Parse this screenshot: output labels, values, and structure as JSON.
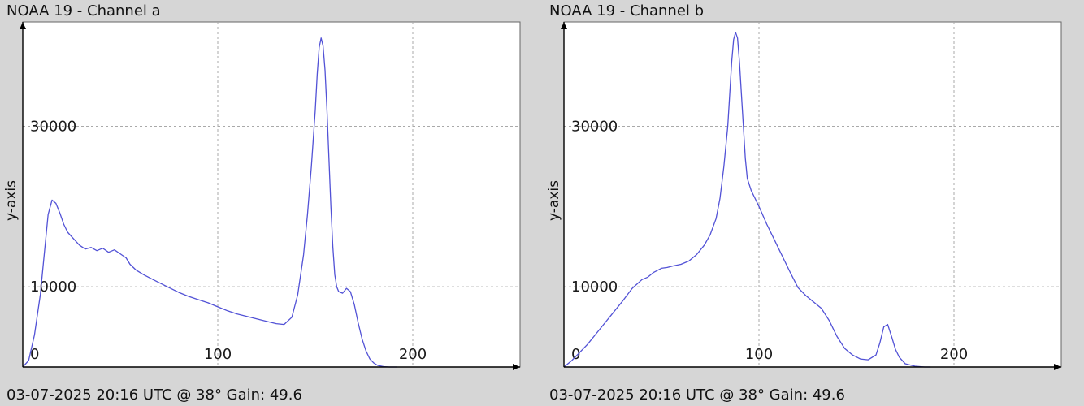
{
  "panels": [
    {
      "title": "NOAA 19 - Channel a",
      "footer": "03-07-2025 20:16 UTC @ 38° Gain: 49.6",
      "ylabel": "y-axis"
    },
    {
      "title": "NOAA 19 - Channel b",
      "footer": "03-07-2025 20:16 UTC @ 38° Gain: 49.6",
      "ylabel": "y-axis"
    }
  ],
  "chart_data": [
    {
      "type": "line",
      "title": "NOAA 19 - Channel a",
      "ylabel": "y-axis",
      "xlim": [
        0,
        255
      ],
      "ylim": [
        0,
        43000
      ],
      "xticks": [
        0,
        100,
        200
      ],
      "yticks": [
        10000,
        30000
      ],
      "grid": true,
      "series_color": "#5252d6",
      "x": [
        0,
        3,
        6,
        9,
        11,
        13,
        15,
        17,
        19,
        21,
        23,
        26,
        29,
        32,
        35,
        38,
        41,
        44,
        47,
        50,
        53,
        55,
        58,
        62,
        66,
        70,
        75,
        80,
        85,
        90,
        95,
        100,
        105,
        110,
        115,
        120,
        125,
        130,
        134,
        138,
        141,
        144,
        146,
        148,
        150,
        151,
        152,
        153,
        154,
        155,
        156,
        157,
        158,
        159,
        160,
        161,
        162,
        164,
        166,
        168,
        170,
        172,
        174,
        176,
        178,
        180,
        182,
        185,
        188,
        190,
        192
      ],
      "values": [
        0,
        800,
        4000,
        9000,
        14000,
        19000,
        20800,
        20400,
        19200,
        17800,
        16800,
        16000,
        15200,
        14700,
        14900,
        14500,
        14800,
        14300,
        14600,
        14100,
        13600,
        12800,
        12100,
        11500,
        11000,
        10500,
        9900,
        9300,
        8800,
        8400,
        8000,
        7500,
        7000,
        6600,
        6300,
        6000,
        5700,
        5400,
        5300,
        6200,
        9000,
        14000,
        19000,
        25000,
        32000,
        36500,
        39800,
        41000,
        40000,
        37000,
        32000,
        26000,
        20000,
        15000,
        11500,
        10000,
        9400,
        9200,
        9800,
        9400,
        7800,
        5500,
        3500,
        2000,
        1000,
        500,
        200,
        50,
        0,
        0,
        0
      ]
    },
    {
      "type": "line",
      "title": "NOAA 19 - Channel b",
      "ylabel": "y-axis",
      "xlim": [
        0,
        255
      ],
      "ylim": [
        0,
        43000
      ],
      "xticks": [
        0,
        100,
        200
      ],
      "yticks": [
        10000,
        30000
      ],
      "grid": true,
      "series_color": "#5252d6",
      "x": [
        0,
        4,
        8,
        12,
        16,
        20,
        25,
        30,
        35,
        40,
        43,
        46,
        50,
        53,
        56,
        60,
        64,
        68,
        72,
        75,
        78,
        80,
        82,
        84,
        85,
        86,
        87,
        88,
        89,
        90,
        91,
        92,
        93,
        94,
        96,
        98,
        100,
        104,
        108,
        112,
        116,
        120,
        124,
        128,
        132,
        136,
        140,
        144,
        148,
        152,
        156,
        160,
        162,
        164,
        166,
        168,
        170,
        172,
        175,
        180,
        185,
        188
      ],
      "values": [
        0,
        800,
        1800,
        2800,
        4000,
        5200,
        6700,
        8200,
        9800,
        10900,
        11200,
        11800,
        12300,
        12400,
        12600,
        12800,
        13200,
        14000,
        15200,
        16500,
        18500,
        21000,
        25000,
        30000,
        34000,
        38000,
        40800,
        41700,
        41000,
        38000,
        34000,
        30000,
        26000,
        23500,
        22000,
        21000,
        20000,
        17800,
        15800,
        13800,
        11800,
        9900,
        8900,
        8100,
        7300,
        5800,
        3800,
        2300,
        1500,
        1000,
        900,
        1500,
        3000,
        5000,
        5300,
        3800,
        2200,
        1200,
        400,
        100,
        0,
        0
      ]
    }
  ]
}
